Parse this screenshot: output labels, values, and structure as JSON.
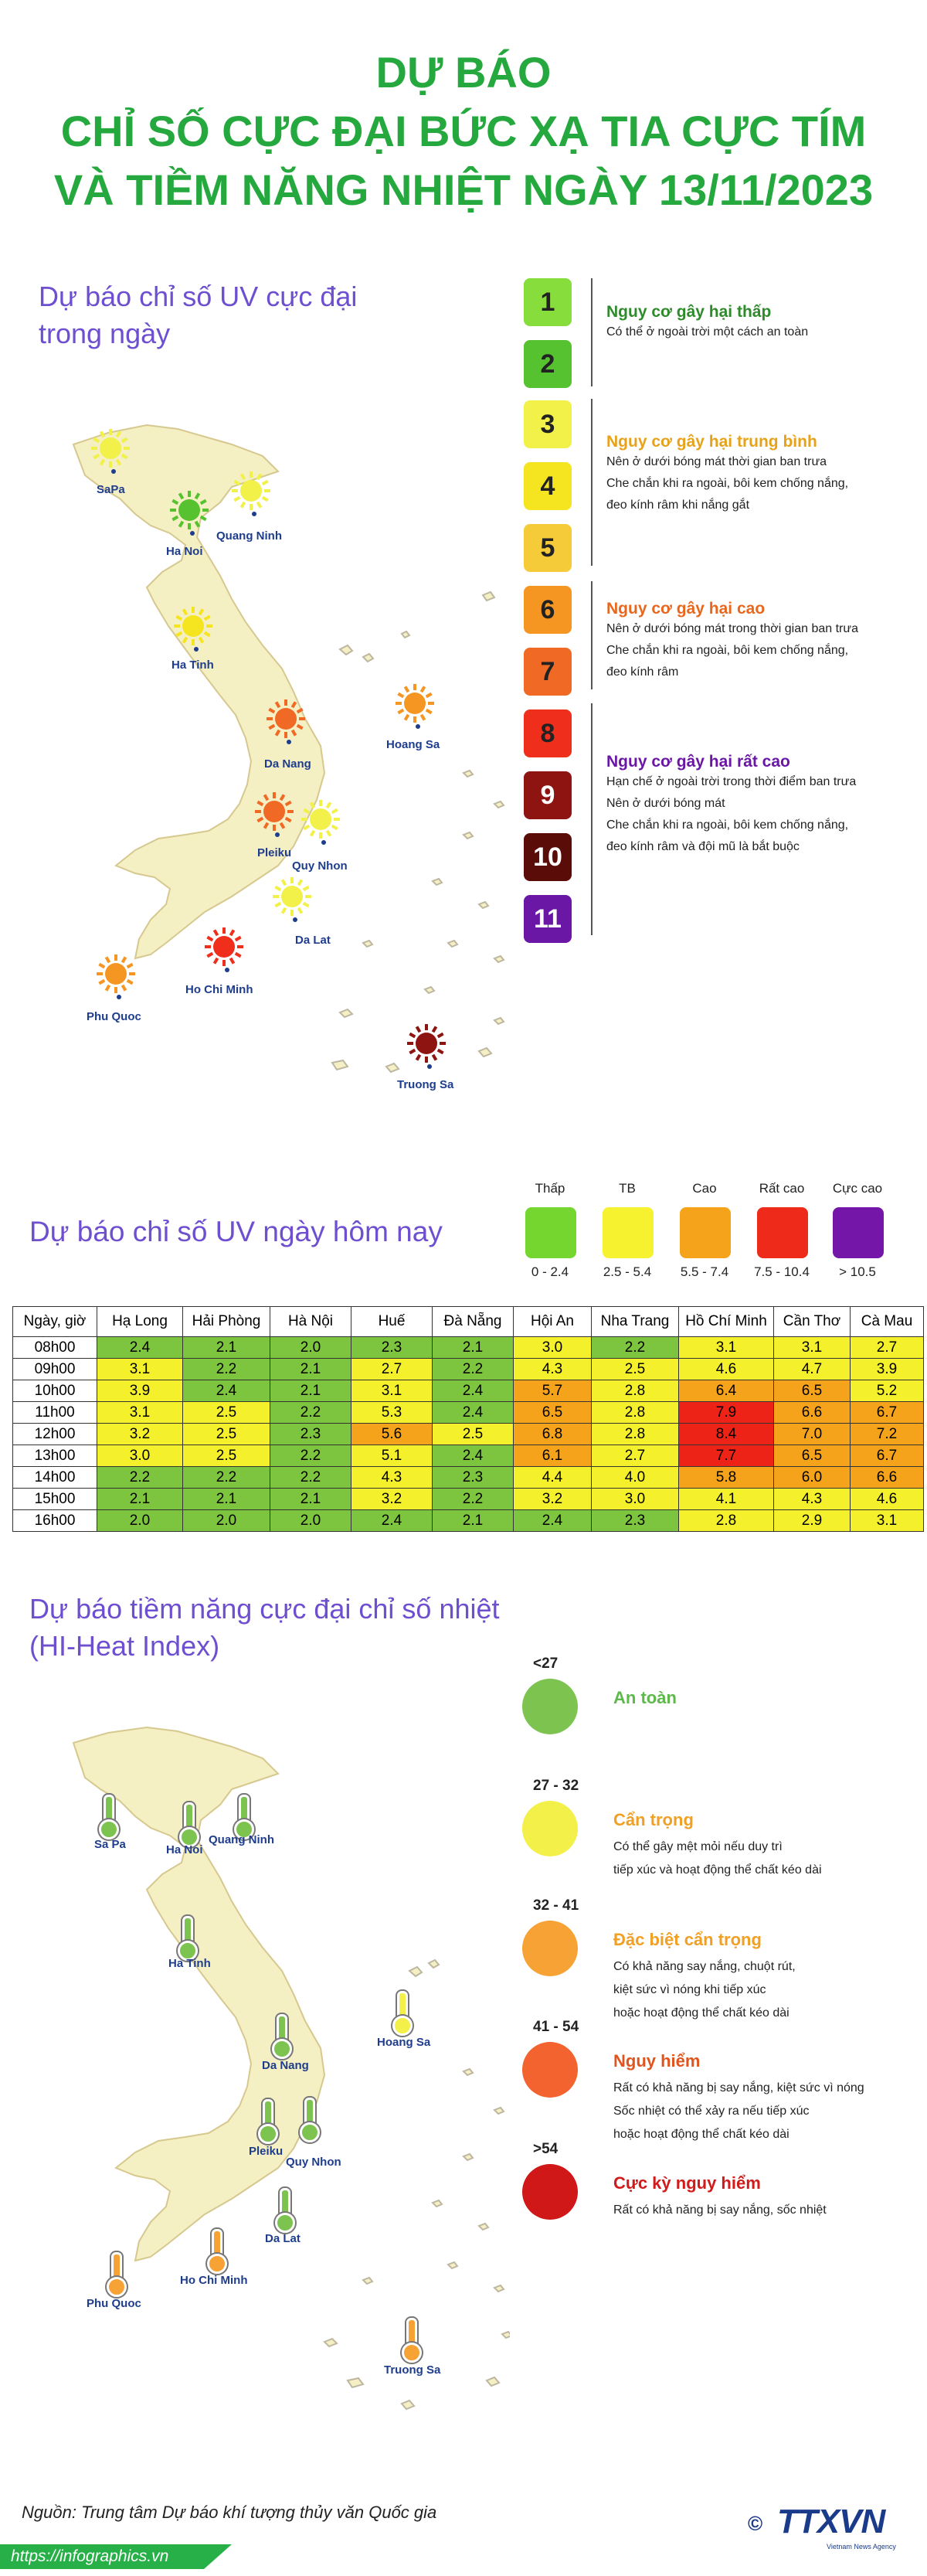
{
  "header": {
    "title_lines": [
      "DỰ BÁO",
      "CHỈ SỐ CỰC ĐẠI BỨC XẠ TIA CỰC TÍM",
      "VÀ TIỀM NĂNG NHIỆT NGÀY 13/11/2023"
    ]
  },
  "uv_map": {
    "title_line1": "Dự báo chỉ số UV cực đại",
    "title_line2": "trong ngày",
    "cities": [
      {
        "name": "SaPa",
        "uv_level": 3
      },
      {
        "name": "Ha Noi",
        "uv_level": 2
      },
      {
        "name": "Quang Ninh",
        "uv_level": 3
      },
      {
        "name": "Ha Tinh",
        "uv_level": 4
      },
      {
        "name": "Hoang Sa",
        "uv_level": 6
      },
      {
        "name": "Da Nang",
        "uv_level": 7
      },
      {
        "name": "Pleiku",
        "uv_level": 7
      },
      {
        "name": "Quy Nhon",
        "uv_level": 3
      },
      {
        "name": "Da Lat",
        "uv_level": 3
      },
      {
        "name": "Ho Chi Minh",
        "uv_level": 8
      },
      {
        "name": "Phu Quoc",
        "uv_level": 6
      },
      {
        "name": "Truong Sa",
        "uv_level": 9
      }
    ],
    "scale": [
      {
        "n": "1",
        "color": "#86dd3c"
      },
      {
        "n": "2",
        "color": "#57c22f"
      },
      {
        "n": "3",
        "color": "#f1f14a"
      },
      {
        "n": "4",
        "color": "#f5e521"
      },
      {
        "n": "5",
        "color": "#f6cb3a"
      },
      {
        "n": "6",
        "color": "#f59622"
      },
      {
        "n": "7",
        "color": "#f06a26"
      },
      {
        "n": "8",
        "color": "#ef2f1c"
      },
      {
        "n": "9",
        "color": "#8d1410"
      },
      {
        "n": "10",
        "color": "#5a0c08"
      },
      {
        "n": "11",
        "color": "#6a17a6"
      }
    ],
    "groups": [
      {
        "title": "Nguy cơ gây hại thấp",
        "color": "#2f8a2c",
        "desc": [
          "Có thể ở ngoài trời một cách an toàn"
        ]
      },
      {
        "title": "Nguy cơ gây hại trung bình",
        "color": "#e6a21a",
        "desc": [
          "Nên ở dưới bóng mát thời gian ban trưa",
          "Che chắn khi ra ngoài, bôi kem chống nắng,",
          "đeo kính râm khi nắng gắt"
        ]
      },
      {
        "title": "Nguy cơ gây hại cao",
        "color": "#e8671e",
        "desc": [
          "Nên ở dưới bóng mát trong thời gian ban trưa",
          "Che chắn khi ra ngoài, bôi kem chống nắng,",
          "đeo kính râm"
        ]
      },
      {
        "title": "Nguy cơ gây hại rất cao",
        "color": "#6a17a6",
        "desc": [
          "Hạn chế ở ngoài trời trong thời điểm ban trưa",
          "Nên ở dưới bóng mát",
          "Che chắn khi ra ngoài, bôi kem chống nắng,",
          "đeo kính râm và đội mũ là bắt buộc"
        ]
      }
    ]
  },
  "uv_today": {
    "title": "Dự báo chỉ số UV ngày hôm nay",
    "legend": [
      {
        "label": "Thấp",
        "range": "0 - 2.4",
        "color": "#76d630"
      },
      {
        "label": "TB",
        "range": "2.5 - 5.4",
        "color": "#f7f230"
      },
      {
        "label": "Cao",
        "range": "5.5 - 7.4",
        "color": "#f6a31c"
      },
      {
        "label": "Rất cao",
        "range": "7.5 - 10.4",
        "color": "#ee2a1a"
      },
      {
        "label": "Cực cao",
        "range": "> 10.5",
        "color": "#7417a8"
      }
    ],
    "colors": {
      "low": "#7ec53f",
      "mid": "#f4f02c",
      "high": "#f6a31c",
      "vhigh": "#ee2318"
    },
    "table": {
      "header": [
        "Ngày, giờ",
        "Hạ Long",
        "Hải Phòng",
        "Hà Nội",
        "Huế",
        "Đà Nẵng",
        "Hội An",
        "Nha Trang",
        "Hồ Chí Minh",
        "Cần Thơ",
        "Cà Mau"
      ],
      "rows": [
        {
          "time": "08h00",
          "values": [
            "2.4",
            "2.1",
            "2.0",
            "2.3",
            "2.1",
            "3.0",
            "2.2",
            "3.1",
            "3.1",
            "2.7"
          ]
        },
        {
          "time": "09h00",
          "values": [
            "3.1",
            "2.2",
            "2.1",
            "2.7",
            "2.2",
            "4.3",
            "2.5",
            "4.6",
            "4.7",
            "3.9"
          ]
        },
        {
          "time": "10h00",
          "values": [
            "3.9",
            "2.4",
            "2.1",
            "3.1",
            "2.4",
            "5.7",
            "2.8",
            "6.4",
            "6.5",
            "5.2"
          ]
        },
        {
          "time": "11h00",
          "values": [
            "3.1",
            "2.5",
            "2.2",
            "5.3",
            "2.4",
            "6.5",
            "2.8",
            "7.9",
            "6.6",
            "6.7"
          ]
        },
        {
          "time": "12h00",
          "values": [
            "3.2",
            "2.5",
            "2.3",
            "5.6",
            "2.5",
            "6.8",
            "2.8",
            "8.4",
            "7.0",
            "7.2"
          ]
        },
        {
          "time": "13h00",
          "values": [
            "3.0",
            "2.5",
            "2.2",
            "5.1",
            "2.4",
            "6.1",
            "2.7",
            "7.7",
            "6.5",
            "6.7"
          ]
        },
        {
          "time": "14h00",
          "values": [
            "2.2",
            "2.2",
            "2.2",
            "4.3",
            "2.3",
            "4.4",
            "4.0",
            "5.8",
            "6.0",
            "6.6"
          ]
        },
        {
          "time": "15h00",
          "values": [
            "2.1",
            "2.1",
            "2.1",
            "3.2",
            "2.2",
            "3.2",
            "3.0",
            "4.1",
            "4.3",
            "4.6"
          ]
        },
        {
          "time": "16h00",
          "values": [
            "2.0",
            "2.0",
            "2.0",
            "2.4",
            "2.1",
            "2.4",
            "2.3",
            "2.8",
            "2.9",
            "3.1"
          ]
        }
      ]
    }
  },
  "heat_index": {
    "title_line1": "Dự báo tiềm năng cực đại chỉ số nhiệt",
    "title_line2": "(HI-Heat Index)",
    "cities": [
      {
        "name": "Sa Pa",
        "level": 0
      },
      {
        "name": "Quang Ninh",
        "level": 0
      },
      {
        "name": "Ha Noi",
        "level": 0
      },
      {
        "name": "Ha Tinh",
        "level": 0
      },
      {
        "name": "Hoang Sa",
        "level": 1
      },
      {
        "name": "Da Nang",
        "level": 0
      },
      {
        "name": "Pleiku",
        "level": 0
      },
      {
        "name": "Quy Nhon",
        "level": 0
      },
      {
        "name": "Da Lat",
        "level": 0
      },
      {
        "name": "Ho Chi Minh",
        "level": 2
      },
      {
        "name": "Phu Quoc",
        "level": 2
      },
      {
        "name": "Truong Sa",
        "level": 2
      }
    ],
    "levels": [
      {
        "range": "<27",
        "title": "An toàn",
        "title_color": "#5cb94a",
        "color": "#7cc34f",
        "desc": []
      },
      {
        "range": "27 - 32",
        "title": "Cẩn trọng",
        "title_color": "#f0a025",
        "color": "#f4f04a",
        "desc": [
          "Có thể gây mệt mỏi nếu duy trì",
          "tiếp xúc và hoạt động thể chất kéo dài"
        ]
      },
      {
        "range": "32 - 41",
        "title": "Đặc biệt cẩn trọng",
        "title_color": "#f0a025",
        "color": "#f6a234",
        "desc": [
          "Có khả năng say nắng, chuột rút,",
          "kiệt sức vì nóng khi tiếp xúc",
          "hoặc hoạt động thể chất kéo dài"
        ]
      },
      {
        "range": "41 - 54",
        "title": "Nguy hiểm",
        "title_color": "#e0541e",
        "color": "#f3632f",
        "desc": [
          "Rất có khả năng bị say nắng, kiệt sức vì nóng",
          "Sốc nhiệt có thể xảy ra nếu tiếp xúc",
          "hoặc hoạt động thể chất kéo dài"
        ]
      },
      {
        "range": ">54",
        "title": "Cực kỳ nguy hiểm",
        "title_color": "#d11a1a",
        "color": "#d01818",
        "desc": [
          "Rất có khả năng bị say nắng, sốc nhiệt"
        ]
      }
    ]
  },
  "footer": {
    "source": "Nguồn: Trung tâm Dự báo khí tượng thủy văn Quốc gia",
    "url": "https://infographics.vn",
    "brand": "TTXVN",
    "brand_sub": "Vietnam News Agency",
    "copyright": "©"
  }
}
